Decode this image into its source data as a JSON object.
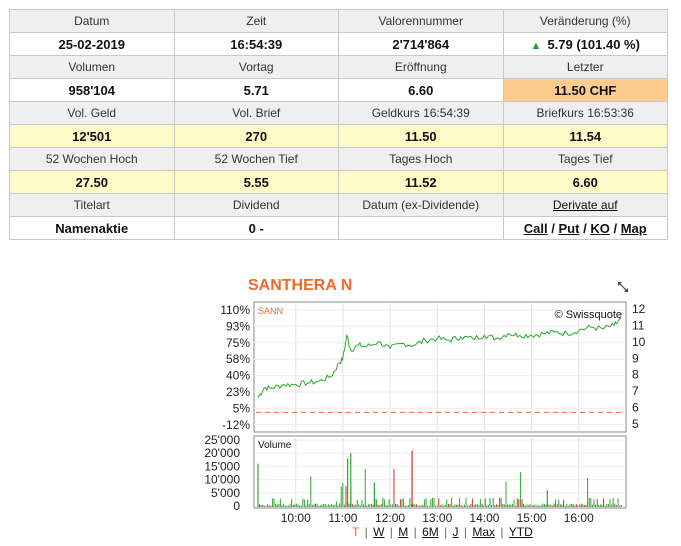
{
  "quotes": {
    "row1_labels": [
      "Datum",
      "Zeit",
      "Valorennummer",
      "Veränderung (%)"
    ],
    "row1_values": [
      "25-02-2019",
      "16:54:39",
      "2'714'864",
      "5.79 (101.40 %)"
    ],
    "row2_labels": [
      "Volumen",
      "Vortag",
      "Eröffnung",
      "Letzter"
    ],
    "row2_values": [
      "958'104",
      "5.71",
      "6.60",
      "11.50 CHF"
    ],
    "row3_labels": [
      "Vol. Geld",
      "Vol. Brief",
      "Geldkurs 16:54:39",
      "Briefkurs 16:53:36"
    ],
    "row3_values": [
      "12'501",
      "270",
      "11.50",
      "11.54"
    ],
    "row4_labels": [
      "52 Wochen Hoch",
      "52 Wochen Tief",
      "Tages Hoch",
      "Tages Tief"
    ],
    "row4_values": [
      "27.50",
      "5.55",
      "11.52",
      "6.60"
    ],
    "row5_labels": [
      "Titelart",
      "Dividend",
      "Datum (ex-Dividende)",
      "Derivate auf"
    ],
    "row5_values": [
      "Namenaktie",
      "0 -",
      ""
    ],
    "derivatives": {
      "call": "Call",
      "put": "Put",
      "ko": "KO",
      "map": "Map",
      "sep": "/"
    },
    "change_direction_icon": "triangle-up-icon",
    "up_color": "#2e9a2e",
    "highlight_color": "#ffcc8f"
  },
  "chart": {
    "title": "SANTHERA N",
    "symbol": "SANN",
    "copyright": "© Swissquote",
    "volume_label": "Volume",
    "expand_icon": "expand-icon",
    "periods": [
      "T",
      "W",
      "M",
      "6M",
      "J",
      "Max",
      "YTD"
    ],
    "active_period": "T",
    "line_color": "#2ea82e",
    "accent_color": "#ee6a2a"
  },
  "chart_data": {
    "type": "line",
    "title": "SANTHERA N",
    "xlabel": "",
    "x_ticks": [
      "10:00",
      "11:00",
      "12:00",
      "13:00",
      "14:00",
      "15:00",
      "16:00"
    ],
    "y_left_ticks": [
      "110%",
      "93%",
      "75%",
      "58%",
      "40%",
      "23%",
      "5%",
      "-12%"
    ],
    "y_right_ticks": [
      "12",
      "11",
      "10",
      "9",
      "8",
      "7",
      "6",
      "5"
    ],
    "ylim_price": [
      5,
      12
    ],
    "previous_close": 5.71,
    "series": [
      {
        "name": "SANN",
        "x": [
          "09:12",
          "09:20",
          "09:30",
          "09:45",
          "10:00",
          "10:15",
          "10:30",
          "10:45",
          "10:55",
          "11:00",
          "11:05",
          "11:10",
          "11:20",
          "11:30",
          "11:45",
          "12:00",
          "12:15",
          "12:30",
          "12:45",
          "13:00",
          "13:15",
          "13:30",
          "13:45",
          "14:00",
          "14:15",
          "14:30",
          "14:45",
          "15:00",
          "15:15",
          "15:30",
          "15:45",
          "16:00",
          "16:15",
          "16:30",
          "16:45",
          "16:54"
        ],
        "values": [
          6.6,
          7.2,
          7.2,
          7.4,
          7.4,
          7.5,
          7.6,
          7.9,
          8.7,
          9.0,
          10.4,
          9.5,
          9.8,
          9.7,
          10.0,
          9.6,
          9.9,
          9.8,
          10.1,
          10.2,
          10.1,
          10.3,
          10.2,
          10.4,
          10.2,
          10.5,
          10.4,
          10.4,
          10.5,
          10.6,
          10.5,
          10.7,
          10.9,
          10.8,
          11.0,
          11.4
        ]
      }
    ],
    "volume": {
      "ylabel_ticks": [
        "25'000",
        "20'000",
        "15'000",
        "10'000",
        "5'000",
        "0"
      ],
      "ylim": [
        0,
        25000
      ],
      "label": "Volume"
    }
  }
}
